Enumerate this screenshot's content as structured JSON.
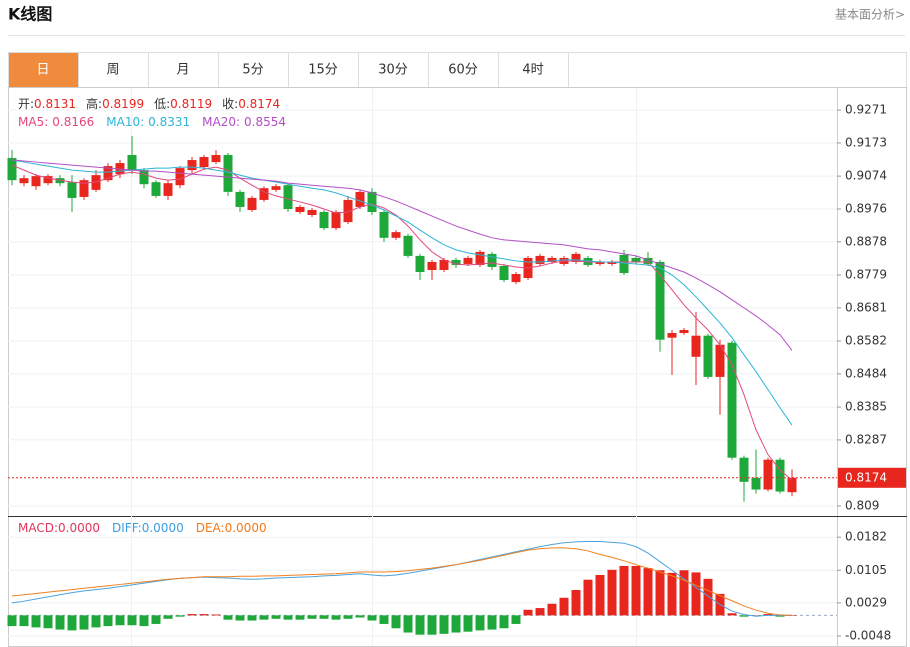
{
  "header": {
    "title": "K线图",
    "link": "基本面分析>"
  },
  "tabs": [
    "日",
    "周",
    "月",
    "5分",
    "15分",
    "30分",
    "60分",
    "4时"
  ],
  "active_tab": 0,
  "chart_data": [
    {
      "type": "candlestick",
      "ohlc_labels": [
        "开:",
        "高:",
        "低:",
        "收:"
      ],
      "up_color": "#e8261e",
      "down_color": "#1fa83a",
      "open": [
        0.9128,
        0.9053,
        0.9044,
        0.9053,
        0.9068,
        0.9056,
        0.9012,
        0.9033,
        0.9062,
        0.908,
        0.9137,
        0.9092,
        0.9056,
        0.9015,
        0.9047,
        0.9092,
        0.9101,
        0.9116,
        0.9137,
        0.9027,
        0.8973,
        0.9003,
        0.9033,
        0.9047,
        0.8967,
        0.8958,
        0.8967,
        0.8919,
        0.8937,
        0.8982,
        0.9027,
        0.8967,
        0.889,
        0.8896,
        0.8836,
        0.8794,
        0.8794,
        0.8824,
        0.8812,
        0.8809,
        0.8842,
        0.8806,
        0.8758,
        0.877,
        0.8812,
        0.8818,
        0.8812,
        0.8818,
        0.883,
        0.8812,
        0.8812,
        0.8839,
        0.883,
        0.883,
        0.8818,
        0.8592,
        0.8606,
        0.8535,
        0.8598,
        0.8475,
        0.8577,
        0.8234,
        0.8174,
        0.8139,
        0.8228,
        0.8131
      ],
      "high": [
        0.9152,
        0.9077,
        0.908,
        0.908,
        0.9077,
        0.9077,
        0.9068,
        0.9092,
        0.9113,
        0.9122,
        0.9194,
        0.9098,
        0.9062,
        0.9062,
        0.9104,
        0.9131,
        0.9137,
        0.9152,
        0.9143,
        0.9033,
        0.9015,
        0.9044,
        0.905,
        0.9053,
        0.8988,
        0.8979,
        0.8973,
        0.8973,
        0.9015,
        0.9033,
        0.9038,
        0.8973,
        0.8913,
        0.8902,
        0.8842,
        0.8824,
        0.883,
        0.883,
        0.8836,
        0.8854,
        0.8848,
        0.8812,
        0.8788,
        0.8836,
        0.8842,
        0.8836,
        0.8836,
        0.8848,
        0.8836,
        0.8824,
        0.8824,
        0.8854,
        0.8836,
        0.8848,
        0.8824,
        0.8615,
        0.8621,
        0.8669,
        0.8604,
        0.8586,
        0.8583,
        0.824,
        0.8258,
        0.8234,
        0.8234,
        0.8199
      ],
      "low": [
        0.9047,
        0.9044,
        0.9033,
        0.9047,
        0.9044,
        0.8967,
        0.9003,
        0.9027,
        0.9056,
        0.9068,
        0.908,
        0.9038,
        0.9009,
        0.9003,
        0.9038,
        0.908,
        0.9092,
        0.911,
        0.9015,
        0.8967,
        0.8967,
        0.8997,
        0.9027,
        0.8967,
        0.8961,
        0.8952,
        0.8913,
        0.8913,
        0.8931,
        0.8976,
        0.8958,
        0.8878,
        0.8884,
        0.883,
        0.8764,
        0.8764,
        0.8788,
        0.88,
        0.8806,
        0.8803,
        0.8794,
        0.8758,
        0.8752,
        0.8764,
        0.8806,
        0.8812,
        0.8806,
        0.8812,
        0.8803,
        0.8806,
        0.8806,
        0.8779,
        0.8812,
        0.8806,
        0.855,
        0.8481,
        0.86,
        0.8451,
        0.8469,
        0.8362,
        0.8228,
        0.8103,
        0.8127,
        0.8133,
        0.8127,
        0.8119
      ],
      "close": [
        0.9062,
        0.9068,
        0.9074,
        0.9074,
        0.9053,
        0.9009,
        0.9062,
        0.9077,
        0.9104,
        0.9113,
        0.9092,
        0.905,
        0.9015,
        0.9053,
        0.9098,
        0.9122,
        0.9131,
        0.9137,
        0.9027,
        0.8982,
        0.9009,
        0.9038,
        0.9044,
        0.8976,
        0.8982,
        0.8973,
        0.8919,
        0.8967,
        0.9003,
        0.9027,
        0.8967,
        0.889,
        0.8907,
        0.8836,
        0.8788,
        0.8818,
        0.8824,
        0.8809,
        0.883,
        0.8848,
        0.8803,
        0.8764,
        0.8782,
        0.883,
        0.8836,
        0.883,
        0.883,
        0.8842,
        0.8809,
        0.8818,
        0.8818,
        0.8785,
        0.8818,
        0.8812,
        0.8586,
        0.8606,
        0.8615,
        0.8598,
        0.8475,
        0.8571,
        0.8234,
        0.8162,
        0.8139,
        0.8228,
        0.8133,
        0.8174
      ],
      "series": [
        {
          "name": "MA5:",
          "color": "#e2487e",
          "values": [
            0.9107,
            0.9092,
            0.9077,
            0.9068,
            0.9062,
            0.9056,
            0.9053,
            0.9056,
            0.9068,
            0.908,
            0.9086,
            0.908,
            0.9068,
            0.9062,
            0.9065,
            0.908,
            0.9095,
            0.9101,
            0.9092,
            0.9068,
            0.9047,
            0.9027,
            0.9015,
            0.9006,
            0.8997,
            0.8988,
            0.8976,
            0.8964,
            0.8967,
            0.8982,
            0.8991,
            0.8979,
            0.8958,
            0.8925,
            0.8884,
            0.8848,
            0.8824,
            0.8812,
            0.8809,
            0.8812,
            0.8815,
            0.8809,
            0.8803,
            0.88,
            0.8806,
            0.8815,
            0.8821,
            0.8821,
            0.8818,
            0.8818,
            0.8818,
            0.8818,
            0.8818,
            0.8818,
            0.8779,
            0.8735,
            0.869,
            0.8651,
            0.8615,
            0.8571,
            0.8511,
            0.8422,
            0.8317,
            0.8243,
            0.8198,
            0.8166
          ]
        },
        {
          "name": "MA10:",
          "color": "#2cb5d6",
          "values": [
            0.9122,
            0.9116,
            0.911,
            0.9104,
            0.9098,
            0.9092,
            0.9089,
            0.9086,
            0.9086,
            0.9089,
            0.9092,
            0.9095,
            0.9098,
            0.9098,
            0.9101,
            0.9101,
            0.9098,
            0.9092,
            0.9086,
            0.9077,
            0.9068,
            0.9062,
            0.9056,
            0.905,
            0.9044,
            0.9038,
            0.9033,
            0.9024,
            0.9012,
            0.9,
            0.8988,
            0.8973,
            0.8955,
            0.8937,
            0.8913,
            0.889,
            0.8869,
            0.8854,
            0.8845,
            0.8839,
            0.8833,
            0.8827,
            0.8821,
            0.8818,
            0.8818,
            0.8821,
            0.8824,
            0.8824,
            0.8821,
            0.8818,
            0.8818,
            0.8815,
            0.8812,
            0.8809,
            0.88,
            0.8779,
            0.875,
            0.8714,
            0.8675,
            0.8636,
            0.8592,
            0.8541,
            0.8491,
            0.8437,
            0.8383,
            0.8331
          ]
        },
        {
          "name": "MA20:",
          "color": "#b34fc5",
          "values": [
            0.9122,
            0.9119,
            0.9116,
            0.9113,
            0.911,
            0.9107,
            0.9104,
            0.9101,
            0.9098,
            0.9095,
            0.9092,
            0.9089,
            0.9089,
            0.9086,
            0.9083,
            0.908,
            0.9077,
            0.9074,
            0.9071,
            0.9068,
            0.9065,
            0.9062,
            0.9059,
            0.9053,
            0.905,
            0.9047,
            0.9044,
            0.9041,
            0.9038,
            0.9033,
            0.9024,
            0.9012,
            0.9,
            0.8985,
            0.897,
            0.8955,
            0.894,
            0.8925,
            0.8913,
            0.8901,
            0.889,
            0.8884,
            0.8881,
            0.8878,
            0.8875,
            0.8872,
            0.8869,
            0.8863,
            0.8857,
            0.8854,
            0.8848,
            0.8842,
            0.8836,
            0.8824,
            0.8812,
            0.88,
            0.8788,
            0.877,
            0.875,
            0.8729,
            0.8705,
            0.8681,
            0.8657,
            0.863,
            0.8601,
            0.8554
          ]
        }
      ],
      "ylim": [
        0.8063,
        0.9331
      ],
      "yticks": [
        0.9271,
        0.9173,
        0.9074,
        0.8976,
        0.8878,
        0.8779,
        0.8681,
        0.8582,
        0.8484,
        0.8385,
        0.8287,
        0.809
      ],
      "grid": true
    },
    {
      "type": "macd",
      "readouts": [
        {
          "label": "MACD:",
          "value": "0.0000",
          "color": "#e2365a"
        },
        {
          "label": "DIFF:",
          "value": "0.0000",
          "color": "#3a9ee0"
        },
        {
          "label": "DEA:",
          "value": "0.0000",
          "color": "#f07a1a"
        }
      ],
      "up_color": "#e8261e",
      "down_color": "#1fa83a",
      "histogram": [
        -0.0025,
        -0.0025,
        -0.0028,
        -0.003,
        -0.0033,
        -0.0035,
        -0.0033,
        -0.0028,
        -0.0025,
        -0.0023,
        -0.0023,
        -0.0025,
        -0.002,
        -0.0008,
        -0.0003,
        0.0003,
        0.0003,
        0.0002,
        -0.001,
        -0.0012,
        -0.0012,
        -0.001,
        -0.0008,
        -0.001,
        -0.001,
        -0.0008,
        -0.0008,
        -0.001,
        -0.0008,
        -0.0005,
        -0.0012,
        -0.002,
        -0.003,
        -0.004,
        -0.0045,
        -0.0045,
        -0.0043,
        -0.004,
        -0.0038,
        -0.0035,
        -0.0033,
        -0.003,
        -0.002,
        0.0013,
        0.0017,
        0.0027,
        0.0041,
        0.0059,
        0.0083,
        0.0094,
        0.0106,
        0.0115,
        0.0115,
        0.011,
        0.0105,
        0.0099,
        0.0105,
        0.01,
        0.0085,
        0.005,
        0.0005,
        -0.0003,
        0.0,
        0.0003,
        -0.0003,
        0.0
      ],
      "series": [
        {
          "color": "#4aa3df",
          "values": [
            0.0029,
            0.0033,
            0.0038,
            0.0043,
            0.0048,
            0.0053,
            0.0057,
            0.006,
            0.0063,
            0.0067,
            0.0071,
            0.0075,
            0.0079,
            0.0083,
            0.0086,
            0.0088,
            0.0089,
            0.0088,
            0.0087,
            0.0085,
            0.0084,
            0.0085,
            0.0087,
            0.0088,
            0.0089,
            0.009,
            0.0092,
            0.0093,
            0.0095,
            0.0097,
            0.0094,
            0.0092,
            0.0094,
            0.0098,
            0.0103,
            0.0108,
            0.0113,
            0.0118,
            0.0124,
            0.013,
            0.0136,
            0.0142,
            0.0148,
            0.0154,
            0.016,
            0.0165,
            0.0169,
            0.0171,
            0.0172,
            0.0172,
            0.017,
            0.0168,
            0.016,
            0.0145,
            0.0125,
            0.0105,
            0.0085,
            0.0065,
            0.0045,
            0.0025,
            0.001,
            0.0002,
            -0.0002,
            0.0,
            0.0,
            0.0
          ]
        },
        {
          "color": "#f08020",
          "values": [
            0.0045,
            0.0048,
            0.0051,
            0.0054,
            0.0057,
            0.006,
            0.0063,
            0.0066,
            0.0069,
            0.0072,
            0.0075,
            0.0078,
            0.0081,
            0.0084,
            0.0086,
            0.0088,
            0.009,
            0.009,
            0.009,
            0.0091,
            0.0091,
            0.0092,
            0.0092,
            0.0093,
            0.0094,
            0.0095,
            0.0096,
            0.0097,
            0.0099,
            0.0101,
            0.0101,
            0.0101,
            0.0102,
            0.0104,
            0.0107,
            0.011,
            0.0114,
            0.0118,
            0.0123,
            0.0128,
            0.0134,
            0.014,
            0.0146,
            0.0152,
            0.0155,
            0.0157,
            0.0157,
            0.0155,
            0.015,
            0.0142,
            0.0135,
            0.0127,
            0.0118,
            0.011,
            0.0101,
            0.0092,
            0.0082,
            0.007,
            0.0058,
            0.0046,
            0.0034,
            0.0022,
            0.0012,
            0.0005,
            0.0001,
            0.0
          ]
        }
      ],
      "ylim": [
        -0.0069,
        0.0229
      ],
      "yticks": [
        0.0182,
        0.0105,
        0.0029,
        -0.0048
      ],
      "grid": true
    }
  ]
}
